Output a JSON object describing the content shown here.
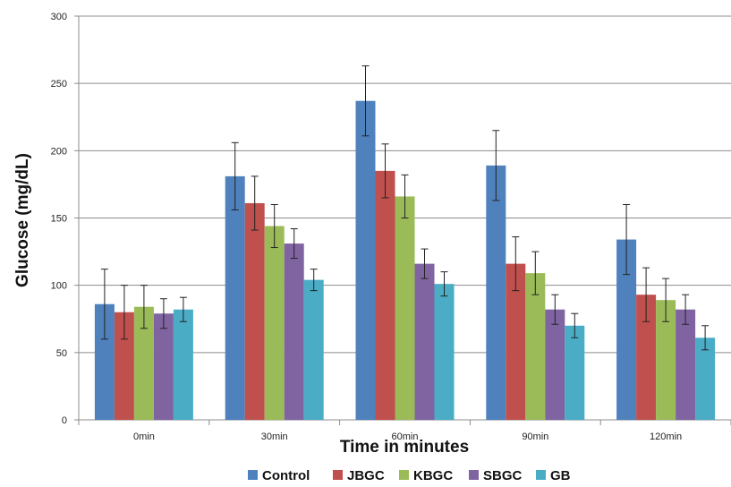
{
  "chart_data": {
    "type": "bar",
    "title": "",
    "xlabel": "Time in minutes",
    "ylabel": "Glucose (mg/dL)",
    "categories": [
      "0min",
      "30min",
      "60min",
      "90min",
      "120min"
    ],
    "ylim": [
      0,
      300
    ],
    "yticks": [
      0,
      50,
      100,
      150,
      200,
      250,
      300
    ],
    "grid": true,
    "legend_position": "bottom",
    "series": [
      {
        "name": "Control",
        "color": "#4F81BD",
        "values": [
          86,
          181,
          237,
          189,
          134
        ],
        "errors": [
          26,
          25,
          26,
          26,
          26
        ]
      },
      {
        "name": "JBGC",
        "color": "#C0504D",
        "values": [
          80,
          161,
          185,
          116,
          93
        ],
        "errors": [
          20,
          20,
          20,
          20,
          20
        ]
      },
      {
        "name": "KBGC",
        "color": "#9BBB59",
        "values": [
          84,
          144,
          166,
          109,
          89
        ],
        "errors": [
          16,
          16,
          16,
          16,
          16
        ]
      },
      {
        "name": "SBGC",
        "color": "#8064A2",
        "values": [
          79,
          131,
          116,
          82,
          82
        ],
        "errors": [
          11,
          11,
          11,
          11,
          11
        ]
      },
      {
        "name": "GB",
        "color": "#4BACC6",
        "values": [
          82,
          104,
          101,
          70,
          61
        ],
        "errors": [
          9,
          8,
          9,
          9,
          9
        ]
      }
    ]
  }
}
